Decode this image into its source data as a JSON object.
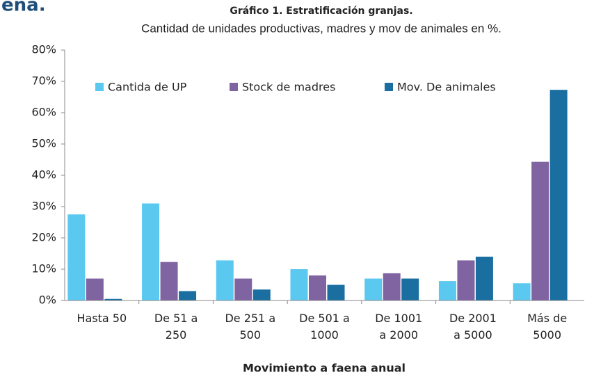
{
  "page_heading": "ena.",
  "chart_data": {
    "type": "bar",
    "title": "Gráfico 1. Estratificación granjas.",
    "subtitle": "Cantidad de unidades productivas, madres y mov de animales en %.",
    "x_label": "Movimiento a faena anual",
    "categories": [
      "Hasta 50",
      "De 51 a 250",
      "De 251 a 500",
      "De 501 a 1000",
      "De 1001 a 2000",
      "De 2001 a 5000",
      "Más de 5000"
    ],
    "series": [
      {
        "name": "Cantida de UP",
        "color": "#5bc8f0",
        "values": [
          27.5,
          31,
          12.8,
          10,
          7,
          6.2,
          5.5
        ]
      },
      {
        "name": "Stock de madres",
        "color": "#8064a2",
        "values": [
          7,
          12.3,
          7,
          8,
          8.7,
          12.8,
          44.3
        ]
      },
      {
        "name": "Mov. De animales",
        "color": "#1a6fa0",
        "values": [
          0.5,
          3,
          3.5,
          5,
          7,
          14,
          67.3
        ]
      }
    ],
    "ylim": [
      0,
      80
    ],
    "yticks": [
      {
        "value": 0,
        "label": "0%"
      },
      {
        "value": 10,
        "label": "10%"
      },
      {
        "value": 20,
        "label": "20%"
      },
      {
        "value": 30,
        "label": "30%"
      },
      {
        "value": 40,
        "label": "40%"
      },
      {
        "value": 50,
        "label": "50%"
      },
      {
        "value": 60,
        "label": "60%"
      },
      {
        "value": 70,
        "label": "70%"
      },
      {
        "value": 80,
        "label": "80%"
      }
    ],
    "legend": "top",
    "grid": false
  }
}
